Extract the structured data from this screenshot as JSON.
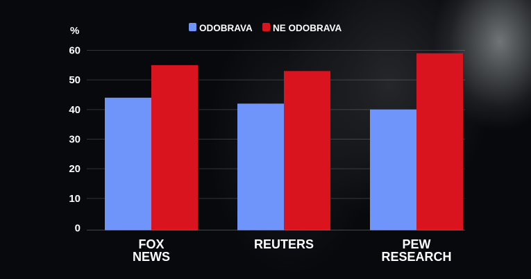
{
  "chart_data": {
    "type": "bar",
    "ylabel": "%",
    "categories": [
      [
        "FOX",
        "NEWS"
      ],
      [
        "REUTERS"
      ],
      [
        "PEW",
        "RESEARCH"
      ]
    ],
    "ylim": [
      0,
      60
    ],
    "yticks": [
      0,
      10,
      20,
      30,
      40,
      50,
      60
    ],
    "grid": true,
    "legend_position": "top",
    "series": [
      {
        "name": "ODOBRAVA",
        "color": "#6f95fb",
        "values": [
          44,
          42,
          40
        ]
      },
      {
        "name": "NE ODOBRAVA",
        "color": "#d9141f",
        "values": [
          55,
          53,
          59
        ]
      }
    ]
  }
}
